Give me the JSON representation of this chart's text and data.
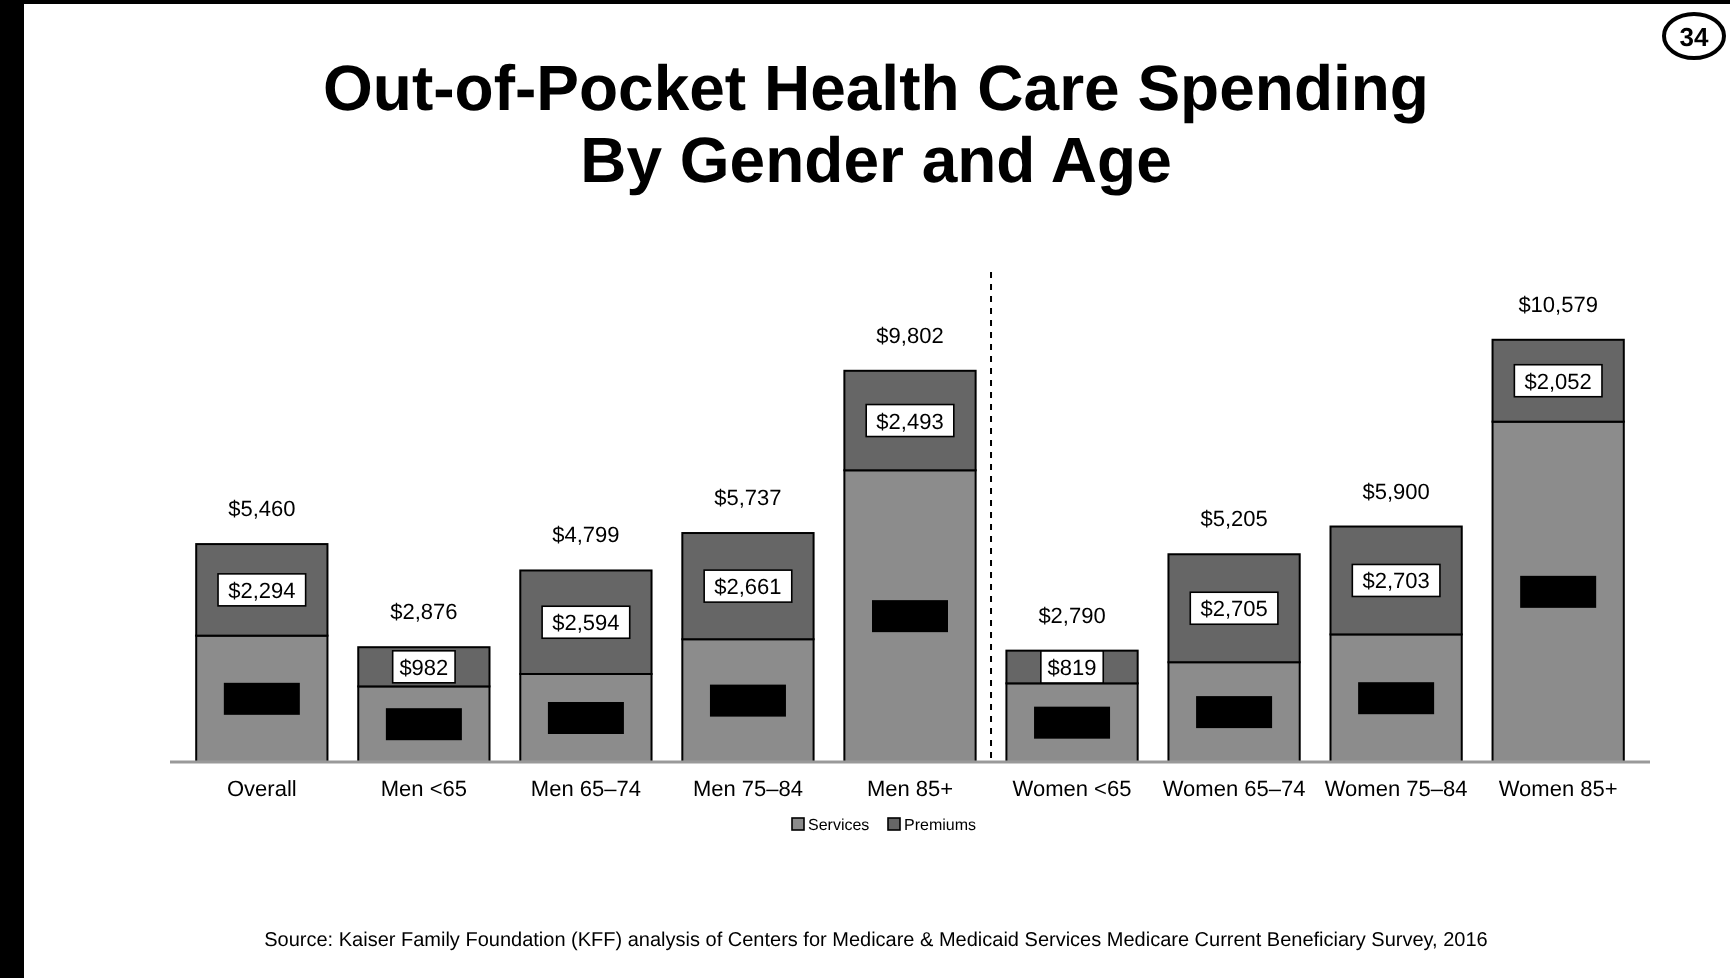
{
  "chart_data": {
    "type": "bar",
    "title": "Out-of-Pocket Health Care Spending\nBy Gender and Age",
    "stacked": true,
    "categories": [
      "Overall",
      "Men <65",
      "Men 65–74",
      "Men 75–84",
      "Men 85+",
      "Women <65",
      "Women 65–74",
      "Women 75–84",
      "Women 85+"
    ],
    "series": [
      {
        "name": "Services",
        "color": "#8c8c8c",
        "values": [
          3166,
          1894,
          2205,
          3076,
          7309,
          1971,
          2500,
          3197,
          8527
        ],
        "value_labels": [
          null,
          null,
          null,
          null,
          null,
          null,
          null,
          null,
          null
        ]
      },
      {
        "name": "Premiums",
        "color": "#666666",
        "values": [
          2294,
          982,
          2594,
          2661,
          2493,
          819,
          2705,
          2703,
          2052
        ],
        "value_labels": [
          "$2,294",
          "$982",
          "$2,594",
          "$2,661",
          "$2,493",
          "$819",
          "$2,705",
          "$2,703",
          "$2,052"
        ]
      }
    ],
    "totals": [
      "$5,460",
      "$2,876",
      "$4,799",
      "$5,737",
      "$9,802",
      "$2,790",
      "$5,205",
      "$5,900",
      "$10,579"
    ],
    "legend": "bottom",
    "annotations": [
      "34",
      "Source: Kaiser Family Foundation (KFF) analysis of Centers for Medicare & Medicaid Services Medicare Current Beneficiary Survey, 2016"
    ]
  }
}
